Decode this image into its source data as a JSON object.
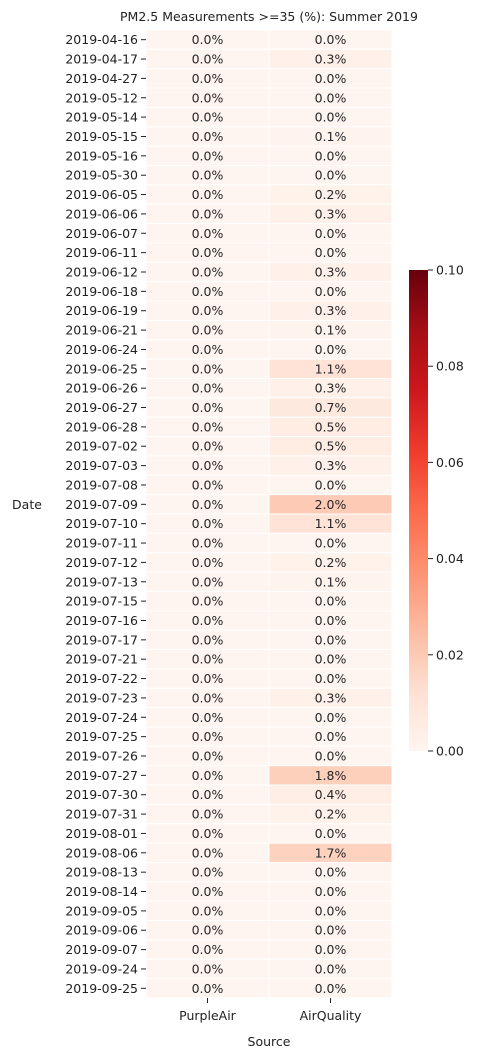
{
  "chart_data": {
    "type": "heatmap",
    "title": "PM2.5 Measurements >=35 (%): Summer 2019",
    "xlabel": "Source",
    "ylabel": "Date",
    "columns": [
      "PurpleAir",
      "AirQuality"
    ],
    "rows": [
      "2019-04-16",
      "2019-04-17",
      "2019-04-27",
      "2019-05-12",
      "2019-05-14",
      "2019-05-15",
      "2019-05-16",
      "2019-05-30",
      "2019-06-05",
      "2019-06-06",
      "2019-06-07",
      "2019-06-11",
      "2019-06-12",
      "2019-06-18",
      "2019-06-19",
      "2019-06-21",
      "2019-06-24",
      "2019-06-25",
      "2019-06-26",
      "2019-06-27",
      "2019-06-28",
      "2019-07-02",
      "2019-07-03",
      "2019-07-08",
      "2019-07-09",
      "2019-07-10",
      "2019-07-11",
      "2019-07-12",
      "2019-07-13",
      "2019-07-15",
      "2019-07-16",
      "2019-07-17",
      "2019-07-21",
      "2019-07-22",
      "2019-07-23",
      "2019-07-24",
      "2019-07-25",
      "2019-07-26",
      "2019-07-27",
      "2019-07-30",
      "2019-07-31",
      "2019-08-01",
      "2019-08-06",
      "2019-08-13",
      "2019-08-14",
      "2019-09-05",
      "2019-09-06",
      "2019-09-07",
      "2019-09-24",
      "2019-09-25"
    ],
    "series": [
      {
        "name": "PurpleAir",
        "values": [
          0,
          0,
          0,
          0,
          0,
          0,
          0,
          0,
          0,
          0,
          0,
          0,
          0,
          0,
          0,
          0,
          0,
          0,
          0,
          0,
          0,
          0,
          0,
          0,
          0,
          0,
          0,
          0,
          0,
          0,
          0,
          0,
          0,
          0,
          0,
          0,
          0,
          0,
          0,
          0,
          0,
          0,
          0,
          0,
          0,
          0,
          0,
          0,
          0,
          0
        ]
      },
      {
        "name": "AirQuality",
        "values": [
          0,
          0.003,
          0,
          0,
          0,
          0.001,
          0,
          0,
          0.002,
          0.003,
          0,
          0,
          0.003,
          0,
          0.003,
          0.001,
          0,
          0.011,
          0.003,
          0.007,
          0.005,
          0.005,
          0.003,
          0,
          0.02,
          0.011,
          0,
          0.002,
          0.001,
          0,
          0,
          0,
          0,
          0,
          0.003,
          0,
          0,
          0,
          0.018,
          0.004,
          0.002,
          0,
          0.017,
          0,
          0,
          0,
          0,
          0,
          0,
          0
        ]
      }
    ],
    "labels": [
      [
        "0.0%",
        "0.0%"
      ],
      [
        "0.0%",
        "0.3%"
      ],
      [
        "0.0%",
        "0.0%"
      ],
      [
        "0.0%",
        "0.0%"
      ],
      [
        "0.0%",
        "0.0%"
      ],
      [
        "0.0%",
        "0.1%"
      ],
      [
        "0.0%",
        "0.0%"
      ],
      [
        "0.0%",
        "0.0%"
      ],
      [
        "0.0%",
        "0.2%"
      ],
      [
        "0.0%",
        "0.3%"
      ],
      [
        "0.0%",
        "0.0%"
      ],
      [
        "0.0%",
        "0.0%"
      ],
      [
        "0.0%",
        "0.3%"
      ],
      [
        "0.0%",
        "0.0%"
      ],
      [
        "0.0%",
        "0.3%"
      ],
      [
        "0.0%",
        "0.1%"
      ],
      [
        "0.0%",
        "0.0%"
      ],
      [
        "0.0%",
        "1.1%"
      ],
      [
        "0.0%",
        "0.3%"
      ],
      [
        "0.0%",
        "0.7%"
      ],
      [
        "0.0%",
        "0.5%"
      ],
      [
        "0.0%",
        "0.5%"
      ],
      [
        "0.0%",
        "0.3%"
      ],
      [
        "0.0%",
        "0.0%"
      ],
      [
        "0.0%",
        "2.0%"
      ],
      [
        "0.0%",
        "1.1%"
      ],
      [
        "0.0%",
        "0.0%"
      ],
      [
        "0.0%",
        "0.2%"
      ],
      [
        "0.0%",
        "0.1%"
      ],
      [
        "0.0%",
        "0.0%"
      ],
      [
        "0.0%",
        "0.0%"
      ],
      [
        "0.0%",
        "0.0%"
      ],
      [
        "0.0%",
        "0.0%"
      ],
      [
        "0.0%",
        "0.0%"
      ],
      [
        "0.0%",
        "0.3%"
      ],
      [
        "0.0%",
        "0.0%"
      ],
      [
        "0.0%",
        "0.0%"
      ],
      [
        "0.0%",
        "0.0%"
      ],
      [
        "0.0%",
        "1.8%"
      ],
      [
        "0.0%",
        "0.4%"
      ],
      [
        "0.0%",
        "0.2%"
      ],
      [
        "0.0%",
        "0.0%"
      ],
      [
        "0.0%",
        "1.7%"
      ],
      [
        "0.0%",
        "0.0%"
      ],
      [
        "0.0%",
        "0.0%"
      ],
      [
        "0.0%",
        "0.0%"
      ],
      [
        "0.0%",
        "0.0%"
      ],
      [
        "0.0%",
        "0.0%"
      ],
      [
        "0.0%",
        "0.0%"
      ],
      [
        "0.0%",
        "0.0%"
      ]
    ],
    "colorbar": {
      "colormap": "Reds",
      "range": [
        0,
        0.1
      ],
      "ticks": [
        "0.00",
        "0.02",
        "0.04",
        "0.06",
        "0.08",
        "0.10"
      ]
    },
    "colormap_stops": [
      "#fff5f0",
      "#fee0d2",
      "#fcbba1",
      "#fc9272",
      "#fb6a4a",
      "#ef3b2c",
      "#cb181d",
      "#a50f15",
      "#67000d"
    ]
  }
}
